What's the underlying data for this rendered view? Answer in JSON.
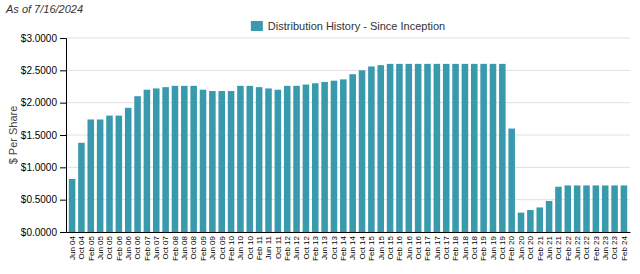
{
  "chart_data": {
    "type": "bar",
    "annotations": [
      "As of 7/16/2024"
    ],
    "y_label": "$ Per Share",
    "categories": [
      "Jun 04",
      "Oct 04",
      "Feb 05",
      "Jun 05",
      "Oct 05",
      "Feb 06",
      "Jun 06",
      "Oct 06",
      "Feb 07",
      "Jun 07",
      "Oct 07",
      "Feb 08",
      "Jun 08",
      "Oct 08",
      "Feb 09",
      "Jun 09",
      "Oct 09",
      "Feb 10",
      "Jun 10",
      "Oct 10",
      "Feb 11",
      "Jun 11",
      "Oct 11",
      "Feb 12",
      "Jun 12",
      "Oct 12",
      "Feb 13",
      "Jun 13",
      "Oct 13",
      "Feb 14",
      "Jun 14",
      "Oct 14",
      "Feb 15",
      "Jun 15",
      "Oct 15",
      "Feb 16",
      "Jun 16",
      "Oct 16",
      "Feb 17",
      "Jun 17",
      "Oct 17",
      "Feb 18",
      "Jun 18",
      "Oct 18",
      "Feb 19",
      "Jun 19",
      "Oct 19",
      "Feb 20",
      "Jun 20",
      "Oct 20",
      "Feb 21",
      "Jun 21",
      "Oct 21",
      "Feb 22",
      "Jun 22",
      "Oct 22",
      "Feb 23",
      "Jun 23",
      "Oct 23",
      "Feb 24"
    ],
    "series": [
      {
        "name": "Distribution History - Since Inception",
        "color": "#3a9aad",
        "values": [
          0.82,
          1.38,
          1.74,
          1.74,
          1.8,
          1.8,
          1.92,
          2.1,
          2.2,
          2.22,
          2.24,
          2.26,
          2.26,
          2.26,
          2.2,
          2.18,
          2.18,
          2.18,
          2.26,
          2.26,
          2.24,
          2.22,
          2.2,
          2.26,
          2.26,
          2.28,
          2.3,
          2.32,
          2.34,
          2.36,
          2.44,
          2.5,
          2.56,
          2.58,
          2.6,
          2.6,
          2.6,
          2.6,
          2.6,
          2.6,
          2.6,
          2.6,
          2.6,
          2.6,
          2.6,
          2.6,
          2.6,
          1.6,
          0.3,
          0.34,
          0.38,
          0.48,
          0.7,
          0.72,
          0.72,
          0.72,
          0.72,
          0.72,
          0.72,
          0.72
        ]
      }
    ],
    "ylim": [
      0,
      3.0
    ],
    "yticks": [
      {
        "value": 0.0,
        "label": "$0.0000"
      },
      {
        "value": 0.5,
        "label": "$0.5000"
      },
      {
        "value": 1.0,
        "label": "$1.0000"
      },
      {
        "value": 1.5,
        "label": "$1.5000"
      },
      {
        "value": 2.0,
        "label": "$2.0000"
      },
      {
        "value": 2.5,
        "label": "$2.5000"
      },
      {
        "value": 3.0,
        "label": "$3.0000"
      }
    ],
    "grid": true,
    "legend": "top"
  }
}
